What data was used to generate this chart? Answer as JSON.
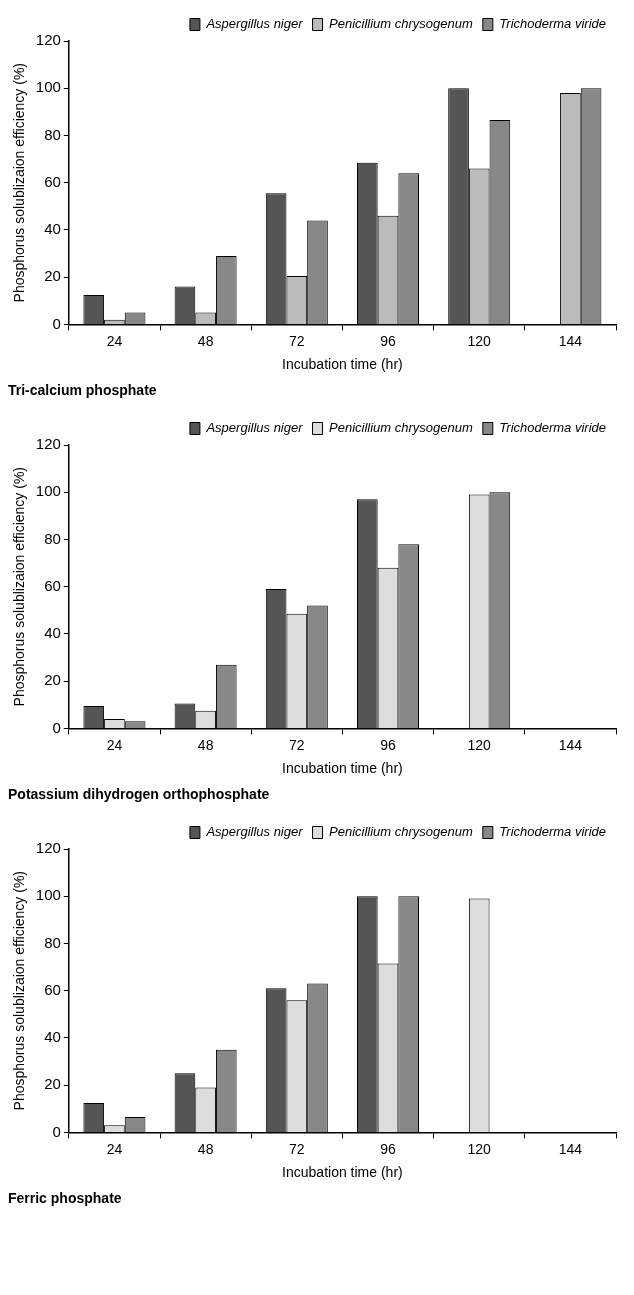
{
  "chart_data": [
    {
      "type": "bar",
      "xlabel": "Incubation time (hr)",
      "ylabel": "Phosphorus solublizaion efficiency (%)",
      "categories": [
        "24",
        "48",
        "72",
        "96",
        "120",
        "144"
      ],
      "series": [
        {
          "name": "Aspergillus niger",
          "color": "#555555",
          "values": [
            12.5,
            16,
            55.5,
            68.5,
            100,
            null
          ]
        },
        {
          "name": "Penicillium chrysogenum",
          "color": "#bbbbbb",
          "values": [
            2,
            5,
            20.5,
            46,
            66,
            98
          ]
        },
        {
          "name": "Trichoderma viride",
          "color": "#888888",
          "values": [
            5,
            29,
            44,
            64,
            86.5,
            100
          ]
        }
      ],
      "ylim": [
        0,
        120
      ],
      "yticks": [
        0,
        20,
        40,
        60,
        80,
        100,
        120
      ],
      "grid": false,
      "legend": "top right",
      "annotations": [
        "Tri-calcium phosphate"
      ]
    },
    {
      "type": "bar",
      "xlabel": "Incubation time (hr)",
      "ylabel": "Phosphorus solublizaion efficiency (%)",
      "categories": [
        "24",
        "48",
        "72",
        "96",
        "120",
        "144"
      ],
      "series": [
        {
          "name": "Aspergillus niger",
          "color": "#555555",
          "values": [
            9.5,
            10.5,
            59,
            97,
            null,
            null
          ]
        },
        {
          "name": "Penicillium chrysogenum",
          "color": "#dddddd",
          "values": [
            4,
            7.5,
            48.5,
            68,
            99,
            null
          ]
        },
        {
          "name": "Trichoderma viride",
          "color": "#888888",
          "values": [
            3,
            27,
            52,
            78,
            100,
            null
          ]
        }
      ],
      "ylim": [
        0,
        120
      ],
      "yticks": [
        0,
        20,
        40,
        60,
        80,
        100,
        120
      ],
      "grid": false,
      "legend": "top right",
      "annotations": [
        "Potassium dihydrogen orthophosphate"
      ]
    },
    {
      "type": "bar",
      "xlabel": "Incubation time (hr)",
      "ylabel": "Phosphorus solublizaion efficiency (%)",
      "categories": [
        "24",
        "48",
        "72",
        "96",
        "120",
        "144"
      ],
      "series": [
        {
          "name": "Aspergillus niger",
          "color": "#555555",
          "values": [
            12.5,
            25,
            61,
            100,
            null,
            null
          ]
        },
        {
          "name": "Penicillium chrysogenum",
          "color": "#dddddd",
          "values": [
            3,
            19,
            56,
            71.5,
            99,
            null
          ]
        },
        {
          "name": "Trichoderma viride",
          "color": "#888888",
          "values": [
            6.5,
            35,
            63,
            100,
            null,
            null
          ]
        }
      ],
      "ylim": [
        0,
        120
      ],
      "yticks": [
        0,
        20,
        40,
        60,
        80,
        100,
        120
      ],
      "grid": false,
      "legend": "top right",
      "annotations": [
        "Ferric phosphate"
      ]
    }
  ]
}
